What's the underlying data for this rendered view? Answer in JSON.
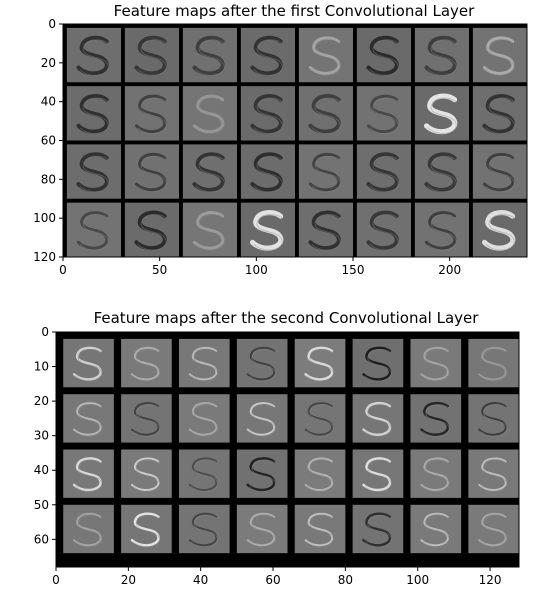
{
  "chart_data": [
    {
      "type": "heatmap",
      "title": "Feature maps after the first Convolutional Layer",
      "grid": {
        "rows": 4,
        "cols": 8,
        "tile_size": 28,
        "padding": 2
      },
      "xlim": [
        0,
        240
      ],
      "ylim": [
        120,
        0
      ],
      "xticks": [
        0,
        50,
        100,
        150,
        200
      ],
      "yticks": [
        0,
        20,
        40,
        60,
        80,
        100,
        120
      ],
      "tiles": [
        [
          {
            "c": "#6e6e6e",
            "s": "#2a2a2a",
            "w": 4
          },
          {
            "c": "#6a6a6a",
            "s": "#333333",
            "w": 4
          },
          {
            "c": "#707070",
            "s": "#3a3a3a",
            "w": 4
          },
          {
            "c": "#6b6b6b",
            "s": "#2e2e2e",
            "w": 4
          },
          {
            "c": "#747474",
            "s": "#a8a8a8",
            "w": 3
          },
          {
            "c": "#6a6a6a",
            "s": "#262626",
            "w": 4
          },
          {
            "c": "#707070",
            "s": "#383838",
            "w": 4
          },
          {
            "c": "#737373",
            "s": "#b0b0b0",
            "w": 3
          }
        ],
        [
          {
            "c": "#6c6c6c",
            "s": "#2a2a2a",
            "w": 4
          },
          {
            "c": "#727272",
            "s": "#3c3c3c",
            "w": 3
          },
          {
            "c": "#757575",
            "s": "#9a9a9a",
            "w": 3
          },
          {
            "c": "#6b6b6b",
            "s": "#303030",
            "w": 4
          },
          {
            "c": "#707070",
            "s": "#3a3a3a",
            "w": 4
          },
          {
            "c": "#727272",
            "s": "#444444",
            "w": 3
          },
          {
            "c": "#6a6a6a",
            "s": "#f2f2f2",
            "w": 5
          },
          {
            "c": "#6e6e6e",
            "s": "#2c2c2c",
            "w": 4
          }
        ],
        [
          {
            "c": "#6d6d6d",
            "s": "#2c2c2c",
            "w": 4
          },
          {
            "c": "#717171",
            "s": "#3a3a3a",
            "w": 3
          },
          {
            "c": "#6f6f6f",
            "s": "#2e2e2e",
            "w": 4
          },
          {
            "c": "#6c6c6c",
            "s": "#282828",
            "w": 4
          },
          {
            "c": "#737373",
            "s": "#3e3e3e",
            "w": 3
          },
          {
            "c": "#6e6e6e",
            "s": "#303030",
            "w": 4
          },
          {
            "c": "#707070",
            "s": "#333333",
            "w": 4
          },
          {
            "c": "#727272",
            "s": "#3a3a3a",
            "w": 3
          }
        ],
        [
          {
            "c": "#737373",
            "s": "#444444",
            "w": 3
          },
          {
            "c": "#6b6b6b",
            "s": "#262626",
            "w": 4
          },
          {
            "c": "#767676",
            "s": "#a0a0a0",
            "w": 3
          },
          {
            "c": "#6a6a6a",
            "s": "#f0f0f0",
            "w": 5
          },
          {
            "c": "#6e6e6e",
            "s": "#2a2a2a",
            "w": 4
          },
          {
            "c": "#707070",
            "s": "#333333",
            "w": 4
          },
          {
            "c": "#727272",
            "s": "#3a3a3a",
            "w": 3
          },
          {
            "c": "#6a6a6a",
            "s": "#ececec",
            "w": 5
          }
        ]
      ]
    },
    {
      "type": "heatmap",
      "title": "Feature maps after the second Convolutional Layer",
      "grid": {
        "rows": 4,
        "cols": 8,
        "tile_size": 14,
        "padding": 2
      },
      "xlim": [
        0,
        128
      ],
      "ylim": [
        68,
        0
      ],
      "xticks": [
        0,
        20,
        40,
        60,
        80,
        100,
        120
      ],
      "yticks": [
        0,
        10,
        20,
        30,
        40,
        50,
        60
      ],
      "tiles": [
        [
          {
            "c": "#767676",
            "s": "#d8d8d8",
            "w": 2.5
          },
          {
            "c": "#7a7a7a",
            "s": "#b4b4b4",
            "w": 2
          },
          {
            "c": "#787878",
            "s": "#c0c0c0",
            "w": 2
          },
          {
            "c": "#737373",
            "s": "#3a3a3a",
            "w": 2
          },
          {
            "c": "#7c7c7c",
            "s": "#e4e4e4",
            "w": 2.5
          },
          {
            "c": "#6f6f6f",
            "s": "#151515",
            "w": 2.5
          },
          {
            "c": "#7a7a7a",
            "s": "#aaaaaa",
            "w": 2
          },
          {
            "c": "#777777",
            "s": "#9c9c9c",
            "w": 2
          }
        ],
        [
          {
            "c": "#787878",
            "s": "#bcbcbc",
            "w": 2
          },
          {
            "c": "#747474",
            "s": "#3c3c3c",
            "w": 2
          },
          {
            "c": "#7a7a7a",
            "s": "#aeaeae",
            "w": 2
          },
          {
            "c": "#777777",
            "s": "#d0d0d0",
            "w": 2
          },
          {
            "c": "#757575",
            "s": "#424242",
            "w": 2
          },
          {
            "c": "#767676",
            "s": "#dcdcdc",
            "w": 2.5
          },
          {
            "c": "#727272",
            "s": "#1e1e1e",
            "w": 2.5
          },
          {
            "c": "#747474",
            "s": "#363636",
            "w": 2
          }
        ],
        [
          {
            "c": "#787878",
            "s": "#e2e2e2",
            "w": 2.5
          },
          {
            "c": "#7a7a7a",
            "s": "#d4d4d4",
            "w": 2
          },
          {
            "c": "#757575",
            "s": "#484848",
            "w": 2
          },
          {
            "c": "#717171",
            "s": "#1a1a1a",
            "w": 2.5
          },
          {
            "c": "#7b7b7b",
            "s": "#b8b8b8",
            "w": 2
          },
          {
            "c": "#777777",
            "s": "#e8e8e8",
            "w": 2.5
          },
          {
            "c": "#7a7a7a",
            "s": "#b0b0b0",
            "w": 2
          },
          {
            "c": "#797979",
            "s": "#c4c4c4",
            "w": 2
          }
        ],
        [
          {
            "c": "#777777",
            "s": "#a8a8a8",
            "w": 2
          },
          {
            "c": "#767676",
            "s": "#f0f0f0",
            "w": 2.5
          },
          {
            "c": "#747474",
            "s": "#3e3e3e",
            "w": 2
          },
          {
            "c": "#7b7b7b",
            "s": "#b2b2b2",
            "w": 2
          },
          {
            "c": "#797979",
            "s": "#c8c8c8",
            "w": 2
          },
          {
            "c": "#737373",
            "s": "#282828",
            "w": 2.5
          },
          {
            "c": "#7a7a7a",
            "s": "#c2c2c2",
            "w": 2
          },
          {
            "c": "#7a7a7a",
            "s": "#acacac",
            "w": 2
          }
        ]
      ]
    }
  ]
}
